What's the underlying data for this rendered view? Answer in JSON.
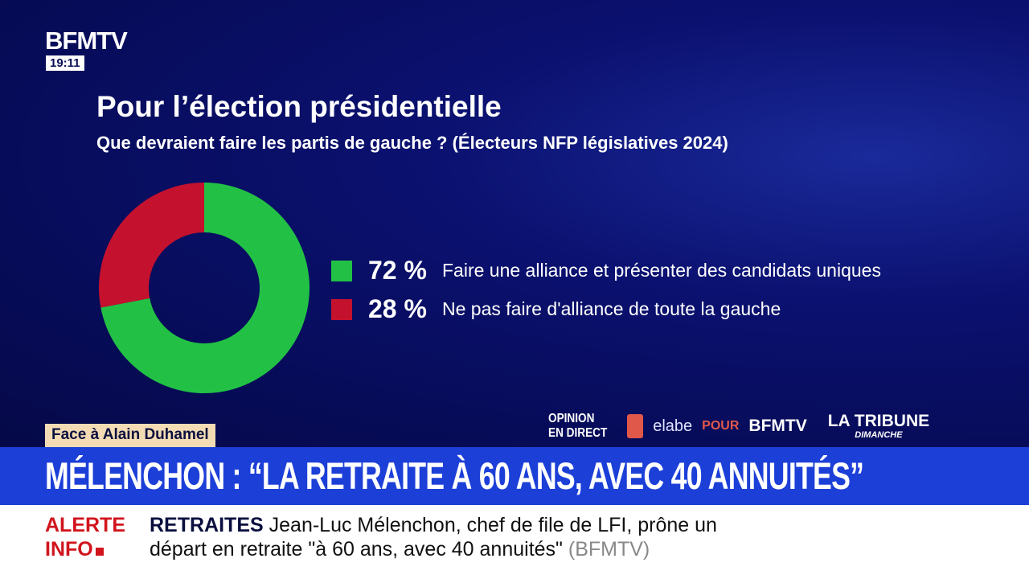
{
  "channel": {
    "logo": "BFMTV",
    "time": "19:11"
  },
  "chart_data": {
    "type": "pie",
    "donut": true,
    "title": "Pour l’élection présidentielle",
    "subtitle": "Que devraient faire les partis de gauche ? (Électeurs NFP législatives 2024)",
    "slices": [
      {
        "label": "Faire une alliance et présenter des candidats uniques",
        "value": 72,
        "display": "72 %",
        "color": "#22c145"
      },
      {
        "label": "Ne pas faire d'alliance de toute la gauche",
        "value": 28,
        "display": "28 %",
        "color": "#c4122e"
      }
    ],
    "legend": "right"
  },
  "sources": {
    "opinion_line1": "OPINION",
    "opinion_line2": "EN DIRECT",
    "elabe": "elabe",
    "pour": "POUR",
    "bfmtv": "BFMTV",
    "tribune": "LA TRIBUNE",
    "tribune_sub": "DIMANCHE"
  },
  "show": "Face à Alain Duhamel",
  "headline": "MÉLENCHON : “LA RETRAITE À 60 ANS, AVEC 40 ANNUITÉS”",
  "ticker": {
    "alert_line1": "ALERTE",
    "alert_line2": "INFO",
    "topic": "RETRAITES",
    "text_line1": "Jean-Luc Mélenchon, chef de file de LFI, prône un",
    "text_line2": "départ en retraite \"à 60 ans, avec 40 annuités\"",
    "source": "(BFMTV)"
  }
}
